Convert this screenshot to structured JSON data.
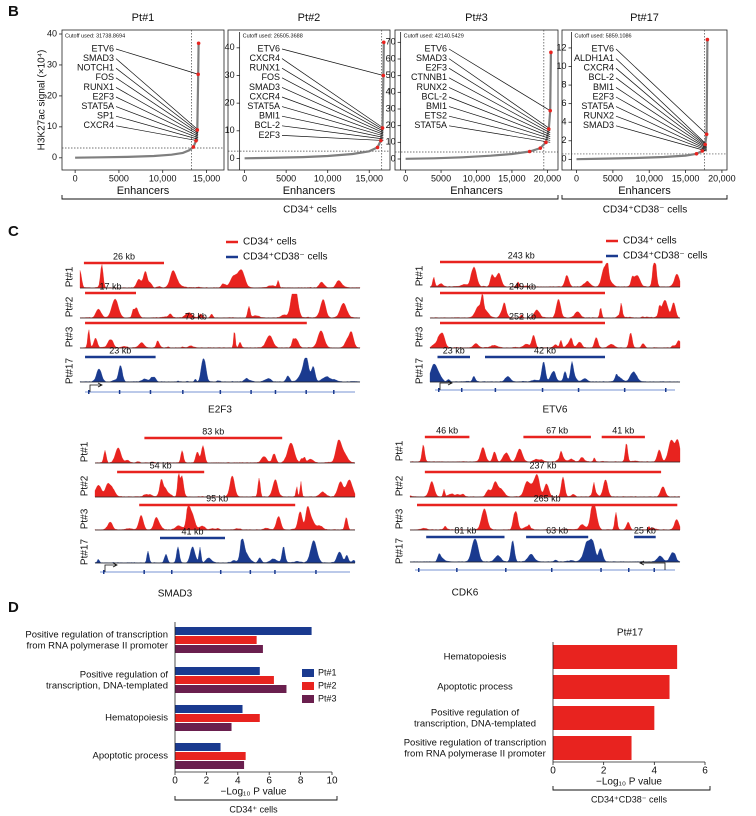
{
  "panel_labels": {
    "b": "B",
    "c": "C",
    "d": "D"
  },
  "chart_data": [
    {
      "type": "ranked",
      "title": "Pt#1",
      "ylabel": "H3K27ac signal (×10⁴)",
      "xlabel": "Enhancers",
      "cutoff": {
        "value": 3.17,
        "label": "Cutoff used: 31738.8694"
      },
      "cutoff_rank": 13300,
      "x": [
        0,
        3000,
        6000,
        9000,
        11000,
        12300,
        13000,
        13500,
        13800,
        13950,
        14050,
        14100
      ],
      "values": [
        0.05,
        0.15,
        0.3,
        0.6,
        1.0,
        1.6,
        2.4,
        3.5,
        5.5,
        9,
        27,
        37
      ],
      "color": "#7f7f7f",
      "highlight_color": "#e8231f",
      "genes": [
        "ETV6",
        "SMAD3",
        "NOTCH1",
        "FOS",
        "RUNX1",
        "E2F3",
        "STAT5A",
        "SP1",
        "CXCR4"
      ],
      "xlim": [
        -1500,
        17000
      ],
      "ylim": [
        -2,
        40
      ],
      "xticks": [
        0,
        5000,
        {
          "value": 10000,
          "label": "10,000"
        },
        {
          "value": 15000,
          "label": "15,000"
        }
      ],
      "yticks": [
        0,
        10,
        20,
        30,
        40
      ]
    },
    {
      "type": "ranked",
      "title": "Pt#2",
      "xlabel": "Enhancers",
      "cutoff": {
        "value": 2.65,
        "label": "Cutoff used: 26505.3688"
      },
      "cutoff_rank": 16500,
      "x": [
        0,
        3000,
        7000,
        10000,
        13000,
        15000,
        16000,
        16400,
        16600,
        16700,
        16750
      ],
      "values": [
        0.05,
        0.2,
        0.5,
        0.9,
        1.6,
        2.6,
        4,
        6.5,
        11,
        30,
        42
      ],
      "color": "#7f7f7f",
      "highlight_color": "#e8231f",
      "genes": [
        "ETV6",
        "CXCR4",
        "RUNX1",
        "FOS",
        "SMAD3",
        "CXCR4",
        "STAT5A",
        "BMI1",
        "BCL-2",
        "E2F3"
      ],
      "xlim": [
        -2000,
        17500
      ],
      "ylim": [
        -2,
        45
      ],
      "xticks": [
        0,
        5000,
        {
          "value": 10000,
          "label": "10,000"
        },
        {
          "value": 15000,
          "label": "15,000"
        }
      ],
      "yticks": [
        0,
        10,
        20,
        30,
        40
      ]
    },
    {
      "type": "ranked",
      "title": "Pt#3",
      "xlabel": "Enhancers",
      "cutoff": {
        "value": 4.21,
        "label": "Cutoff used: 42140.5429"
      },
      "cutoff_rank": 19500,
      "x": [
        0,
        4000,
        8000,
        12000,
        15000,
        17500,
        19000,
        19800,
        20200,
        20400,
        20500
      ],
      "values": [
        0.1,
        0.4,
        1,
        2,
        3,
        4.5,
        6.5,
        10,
        18,
        29,
        64
      ],
      "color": "#7f7f7f",
      "highlight_color": "#e8231f",
      "genes": [
        "ETV6",
        "SMAD3",
        "E2F3",
        "CTNNB1",
        "RUNX2",
        "BCL-2",
        "BMI1",
        "ETS2",
        "STAT5A"
      ],
      "xlim": [
        -1500,
        21500
      ],
      "ylim": [
        -3,
        75
      ],
      "xticks": [
        0,
        5000,
        {
          "value": 10000,
          "label": "10,000"
        },
        {
          "value": 15000,
          "label": "15,000"
        },
        {
          "value": 20000,
          "label": "20,000"
        }
      ],
      "yticks": [
        0,
        10,
        20,
        30,
        40,
        50,
        60,
        70
      ]
    },
    {
      "type": "ranked",
      "title": "Pt#17",
      "xlabel": "Enhancers",
      "cutoff": {
        "value": 0.586,
        "label": "Cutoff used: 5859.1086"
      },
      "cutoff_rank": 17600,
      "x": [
        0,
        4000,
        8000,
        12000,
        15000,
        16500,
        17300,
        17700,
        17900,
        18000
      ],
      "values": [
        0.02,
        0.08,
        0.15,
        0.25,
        0.4,
        0.6,
        0.9,
        1.6,
        2.7,
        12.9
      ],
      "color": "#7f7f7f",
      "highlight_color": "#e8231f",
      "genes": [
        "ETV6",
        "ALDH1A1",
        "CXCR4",
        "BCL-2",
        "BMI1",
        "E2F3",
        "STAT5A",
        "RUNX2",
        "SMAD3"
      ],
      "xlim": [
        -2000,
        20700
      ],
      "ylim": [
        -0.5,
        13.5
      ],
      "xticks": [
        0,
        5000,
        {
          "value": 10000,
          "label": "10,000"
        },
        {
          "value": 15000,
          "label": "15,000"
        },
        {
          "value": 20000,
          "label": "20,000"
        }
      ],
      "yticks": [
        0,
        2,
        4,
        6,
        8,
        10,
        12
      ]
    },
    {
      "type": "grouped_hbar",
      "xlabel": "−Log₁₀ P value",
      "group_label": "CD34⁺ cells",
      "categories": [
        "Positive regulation of transcription\nfrom RNA polymerase II promoter",
        "Positive regulation of\ntranscription, DNA-templated",
        "Hematopoiesis",
        "Apoptotic process"
      ],
      "series": [
        {
          "name": "Pt#1",
          "color": "#1a3a8f",
          "values": [
            8.7,
            5.4,
            4.3,
            2.9
          ]
        },
        {
          "name": "Pt#2",
          "color": "#e8231f",
          "values": [
            5.2,
            6.3,
            5.4,
            4.5
          ]
        },
        {
          "name": "Pt#3",
          "color": "#6a1f4e",
          "values": [
            5.6,
            7.1,
            3.6,
            4.4
          ]
        }
      ],
      "xlim": [
        0,
        10
      ],
      "xticks": [
        0,
        2,
        4,
        6,
        8,
        10
      ]
    },
    {
      "type": "hbar",
      "title": "Pt#17",
      "xlabel": "−Log₁₀ P value",
      "group_label": "CD34⁺CD38⁻ cells",
      "categories": [
        "Hematopoiesis",
        "Apoptotic process",
        "Positive regulation of\ntranscription, DNA-templated",
        "Positive regulation of transcription\nfrom RNA polymerase II promoter"
      ],
      "values": [
        4.9,
        4.6,
        4.0,
        3.1
      ],
      "color": "#e8231f",
      "xlim": [
        0,
        6
      ],
      "xticks": [
        0,
        2,
        4,
        6
      ]
    }
  ],
  "panel_b_groups": [
    "CD34⁺ cells",
    "CD34⁺CD38⁻ cells"
  ],
  "tracks": {
    "legend": [
      {
        "name": "CD34⁺ cells",
        "color": "#e8231f"
      },
      {
        "name": "CD34⁺CD38⁻ cells",
        "color": "#1a3a8f"
      }
    ],
    "loci": [
      {
        "gene": "E2F3",
        "rows": [
          {
            "label": "Pt#1",
            "color": "#e8231f",
            "segments": [
              "26 kb"
            ]
          },
          {
            "label": "Pt#2",
            "color": "#e8231f",
            "segments": [
              "17 kb"
            ]
          },
          {
            "label": "Pt#3",
            "color": "#e8231f",
            "segments": [
              "73 kb"
            ]
          },
          {
            "label": "Pt#17",
            "color": "#1a3a8f",
            "segments": [
              "23 kb"
            ]
          }
        ]
      },
      {
        "gene": "ETV6",
        "rows": [
          {
            "label": "Pt#1",
            "color": "#e8231f",
            "segments": [
              "243 kb"
            ]
          },
          {
            "label": "Pt#2",
            "color": "#e8231f",
            "segments": [
              "249 kb"
            ]
          },
          {
            "label": "Pt#3",
            "color": "#e8231f",
            "segments": [
              "252 kb"
            ]
          },
          {
            "label": "Pt#17",
            "color": "#1a3a8f",
            "segments": [
              "23 kb",
              "42 kb"
            ]
          }
        ]
      },
      {
        "gene": "SMAD3",
        "rows": [
          {
            "label": "Pt#1",
            "color": "#e8231f",
            "segments": [
              "83 kb"
            ]
          },
          {
            "label": "Pt#2",
            "color": "#e8231f",
            "segments": [
              "54 kb"
            ]
          },
          {
            "label": "Pt#3",
            "color": "#e8231f",
            "segments": [
              "95 kb"
            ]
          },
          {
            "label": "Pt#17",
            "color": "#1a3a8f",
            "segments": [
              "41 kb"
            ]
          }
        ]
      },
      {
        "gene": "CDK6",
        "rows": [
          {
            "label": "Pt#1",
            "color": "#e8231f",
            "segments": [
              "46 kb",
              "67 kb",
              "41 kb"
            ]
          },
          {
            "label": "Pt#2",
            "color": "#e8231f",
            "segments": [
              "237 kb"
            ]
          },
          {
            "label": "Pt#3",
            "color": "#e8231f",
            "segments": [
              "265 kb"
            ]
          },
          {
            "label": "Pt#17",
            "color": "#1a3a8f",
            "segments": [
              "81 kb",
              "63 kb",
              "25 kb"
            ]
          }
        ]
      }
    ]
  }
}
